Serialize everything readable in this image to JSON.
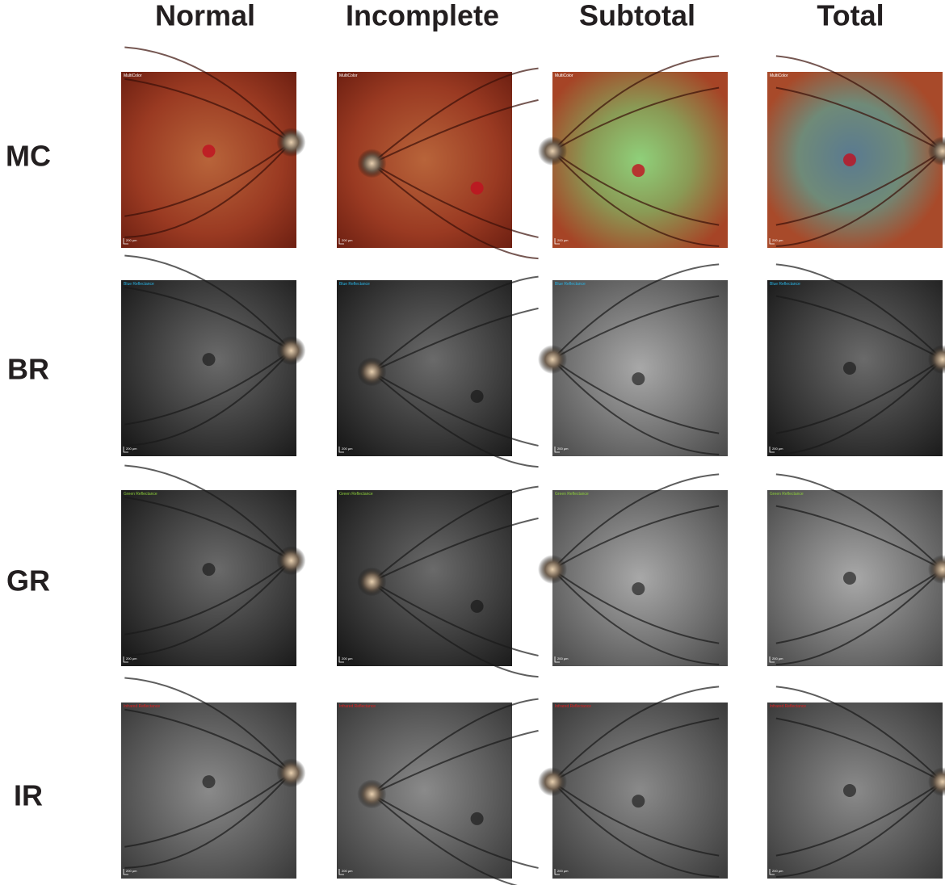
{
  "columns": [
    "Normal",
    "Incomplete",
    "Subtotal",
    "Total"
  ],
  "rows": [
    {
      "label": "MC",
      "image_label": "MultiColor"
    },
    {
      "label": "BR",
      "image_label": "Blue Reflectance"
    },
    {
      "label": "GR",
      "image_label": "Green Reflectance"
    },
    {
      "label": "IR",
      "image_label": "Infrared Reflectance"
    }
  ],
  "scale_bar": "200 µm"
}
